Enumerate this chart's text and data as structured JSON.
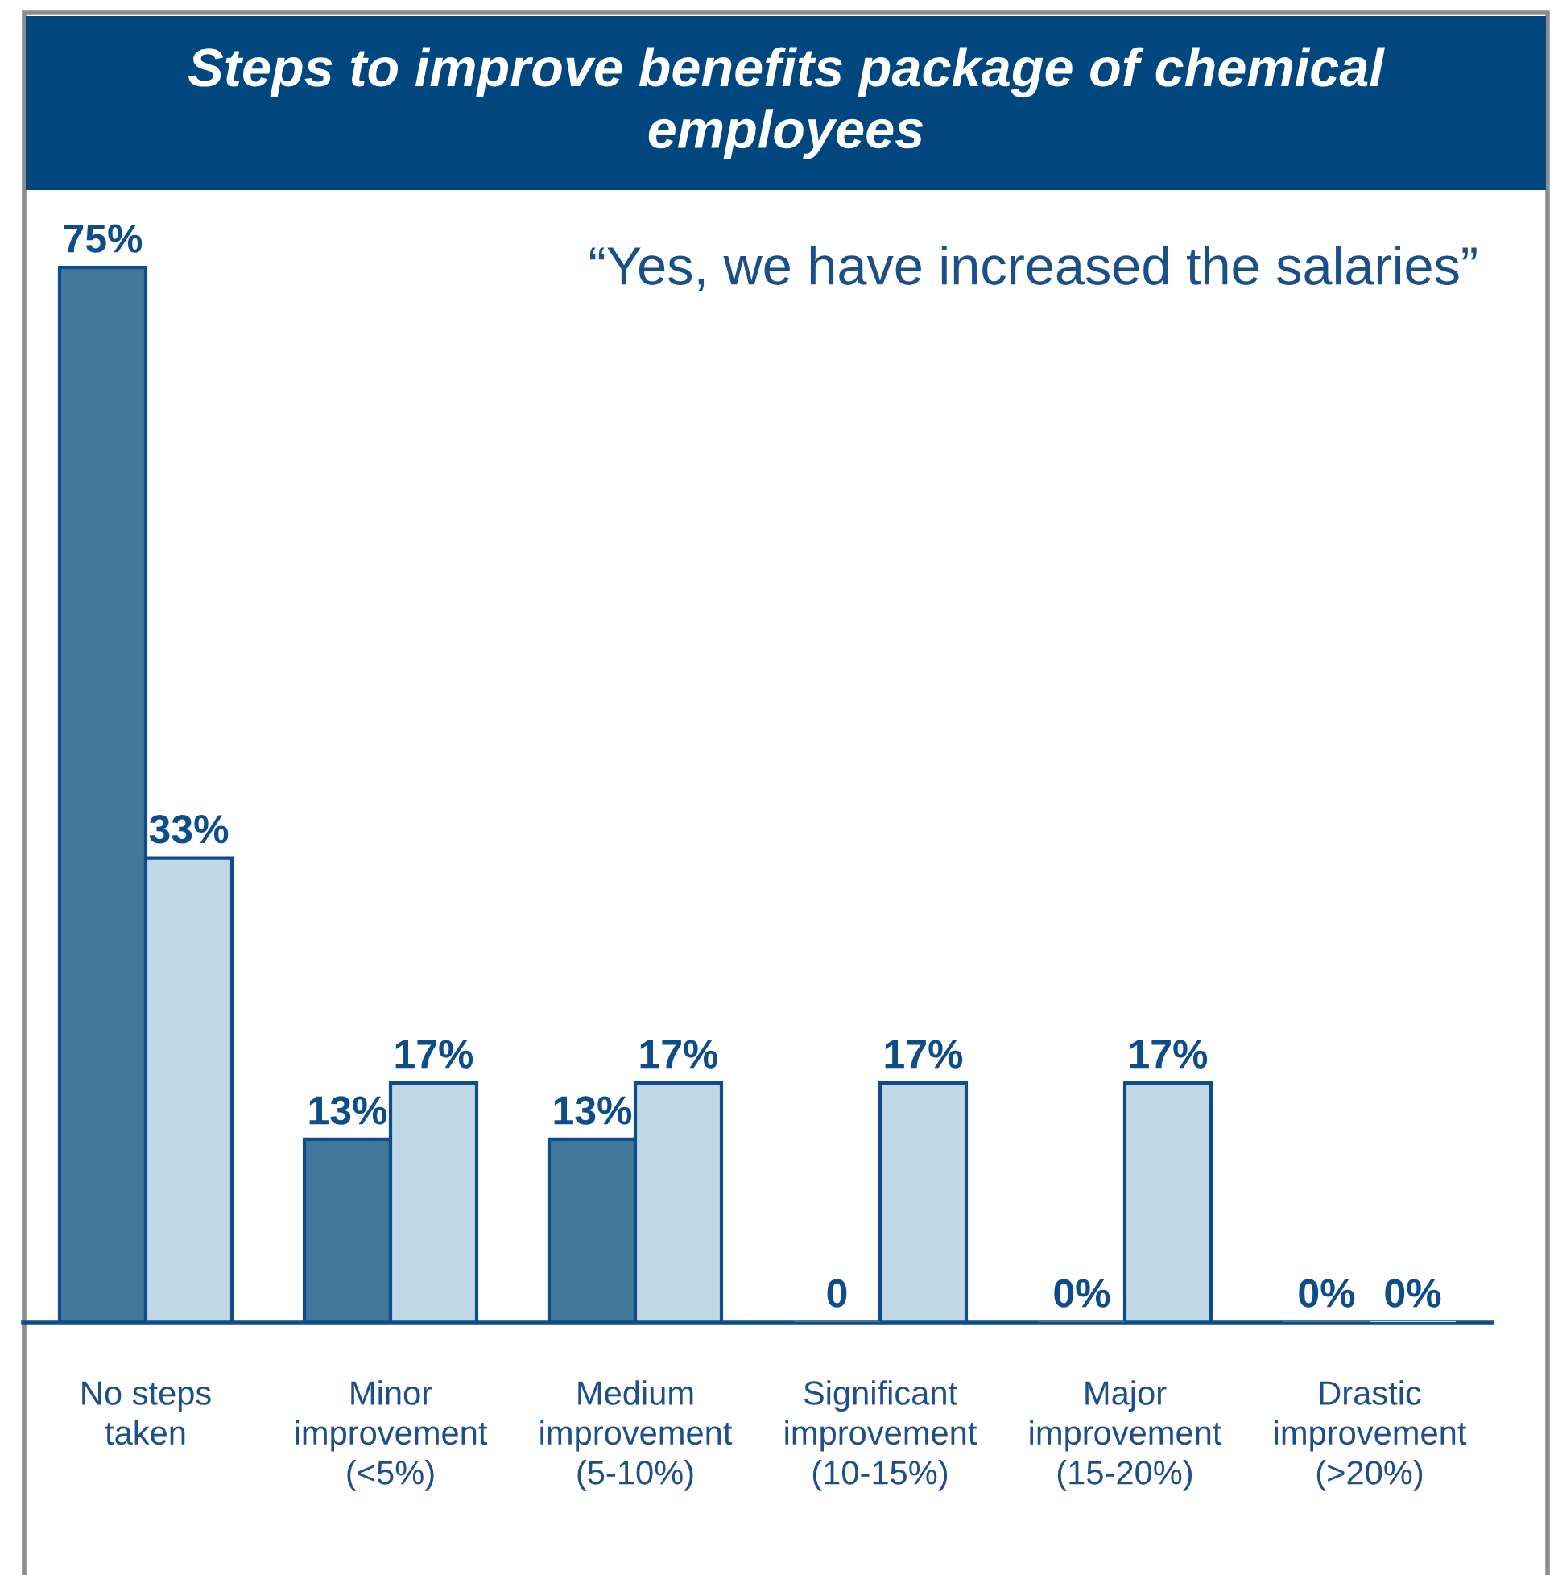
{
  "chart_data": {
    "type": "bar",
    "title": "Steps to improve benefits package of chemical\nemployees",
    "categories": [
      "No steps\ntaken",
      "Minor\nimprovement\n(<5%)",
      "Medium\nimprovement\n(5-10%)",
      "Significant\nimprovement\n(10-15%)",
      "Major\nimprovement\n(15-20%)",
      "Drastic\nimprovement\n(>20%)"
    ],
    "series": [
      {
        "color": "#41789a",
        "values": [
          75,
          13,
          13,
          0,
          0,
          0
        ],
        "value_labels": [
          "75%",
          "13%",
          "13%",
          "0",
          "0%",
          "0%"
        ]
      },
      {
        "color": "#c0d8e6",
        "values": [
          33,
          17,
          17,
          17,
          17,
          0
        ],
        "value_labels": [
          "33%",
          "17%",
          "17%",
          "17%",
          "17%",
          "0%"
        ]
      }
    ],
    "annotations": [
      "“Yes, we have increased the salaries”"
    ]
  }
}
